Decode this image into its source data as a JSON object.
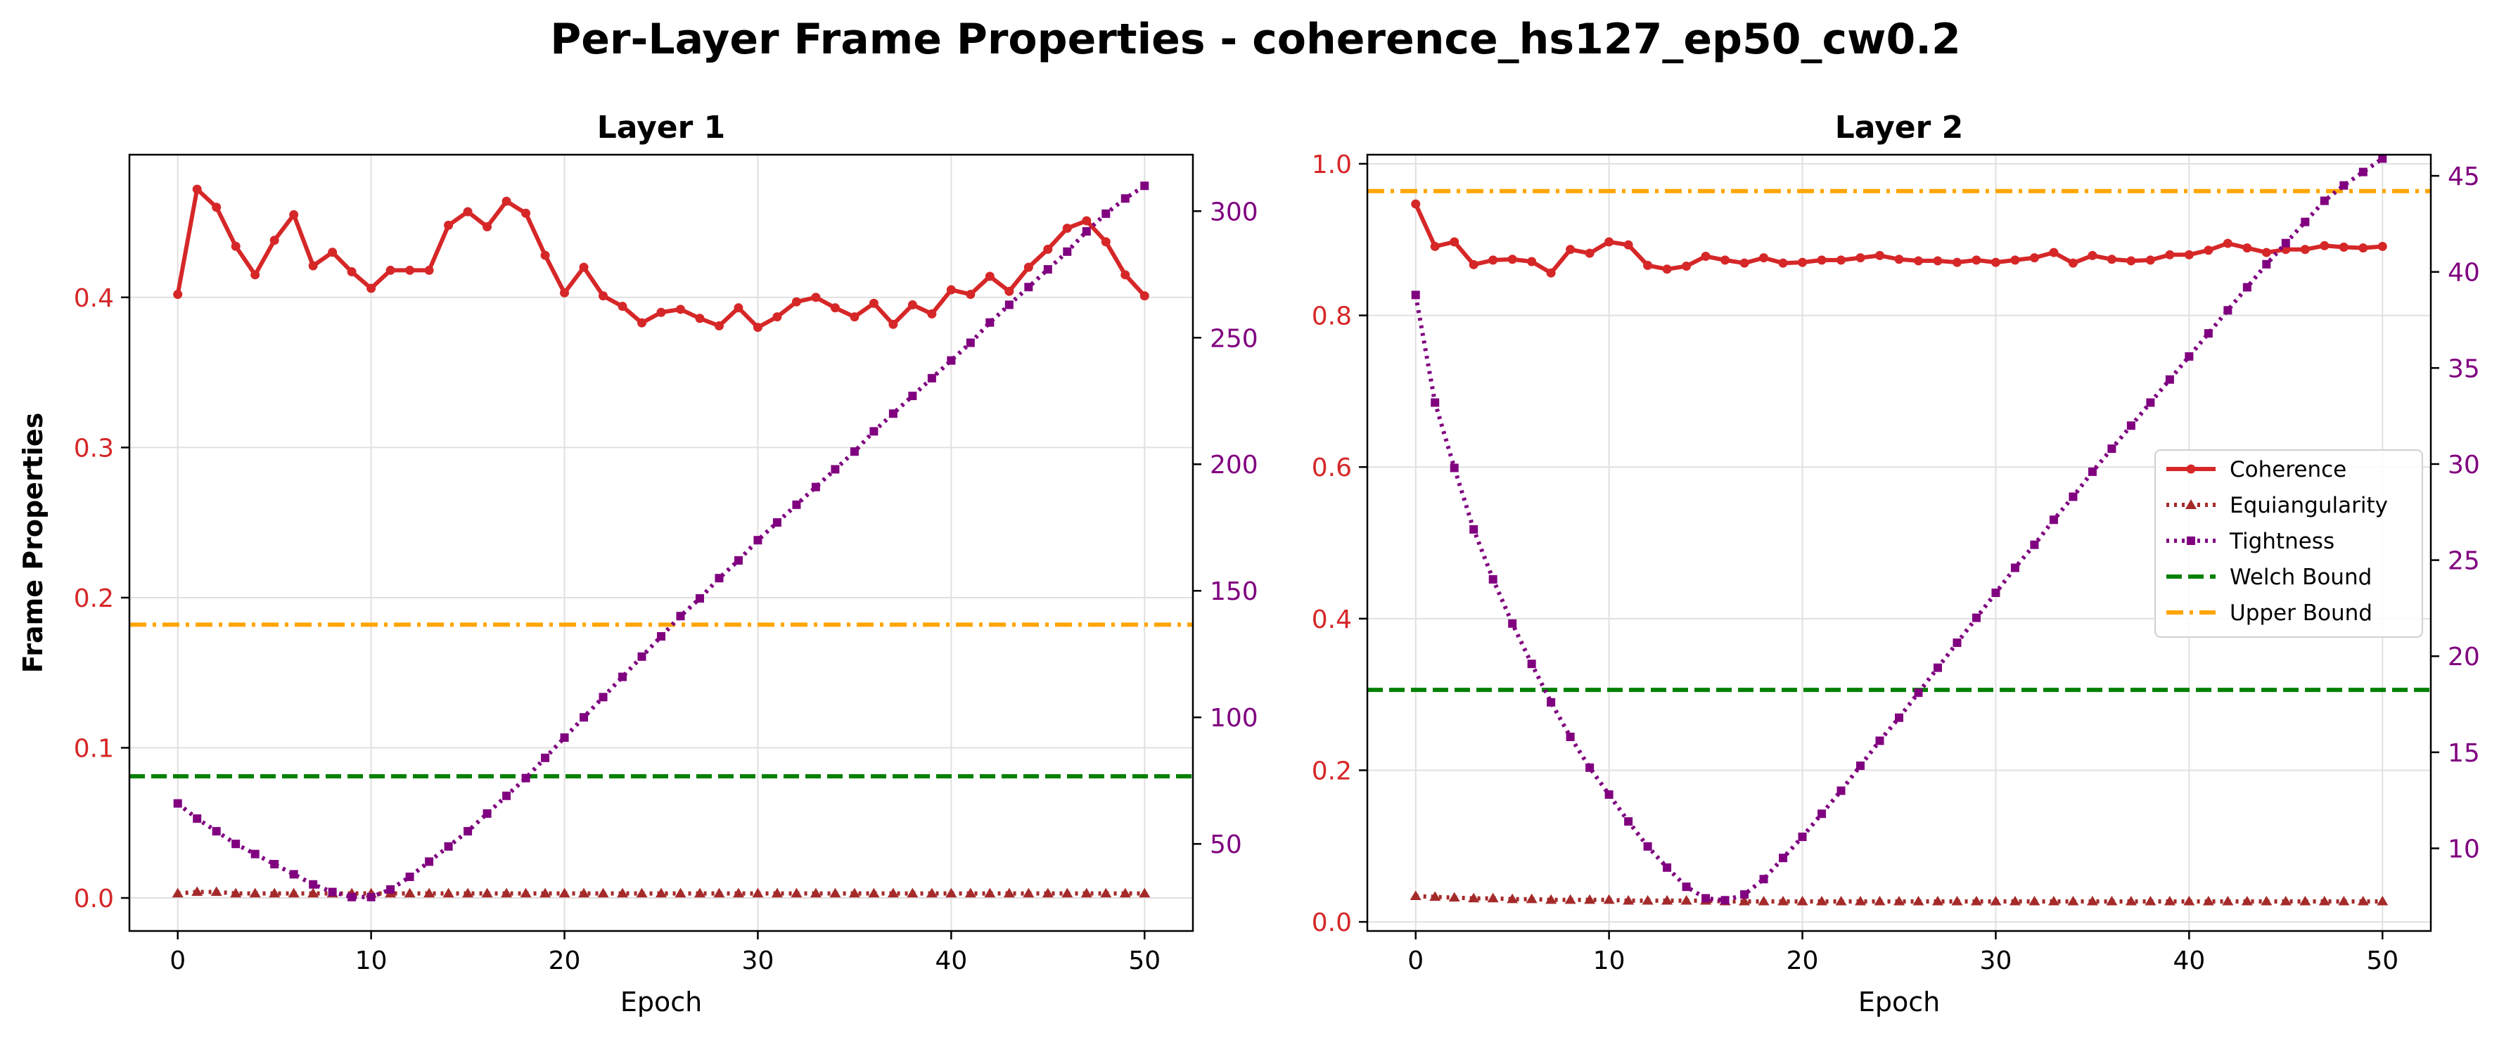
{
  "figure": {
    "title": "Per-Layer Frame Properties - coherence_hs127_ep50_cw0.2"
  },
  "chart_data": [
    {
      "type": "line",
      "title": "Layer 1",
      "xlabel": "Epoch",
      "ylabel": "Frame Properties",
      "y2label": "",
      "xlim": [
        -2.5,
        52.5
      ],
      "ylim": [
        -0.022,
        0.495
      ],
      "y2lim": [
        15.6,
        322.3
      ],
      "xticks": [
        0,
        10,
        20,
        30,
        40,
        50
      ],
      "yticks": [
        0.0,
        0.1,
        0.2,
        0.3,
        0.4
      ],
      "ytick_labels": [
        "0.0",
        "0.1",
        "0.2",
        "0.3",
        "0.4"
      ],
      "y2ticks": [
        50,
        100,
        150,
        200,
        250,
        300
      ],
      "grid": true,
      "legend": "none",
      "x": [
        0,
        1,
        2,
        3,
        4,
        5,
        6,
        7,
        8,
        9,
        10,
        11,
        12,
        13,
        14,
        15,
        16,
        17,
        18,
        19,
        20,
        21,
        22,
        23,
        24,
        25,
        26,
        27,
        28,
        29,
        30,
        31,
        32,
        33,
        34,
        35,
        36,
        37,
        38,
        39,
        40,
        41,
        42,
        43,
        44,
        45,
        46,
        47,
        48,
        49,
        50
      ],
      "series": [
        {
          "name": "Coherence",
          "axis": "left",
          "color": "#d62728",
          "style": "solid",
          "marker": "circle",
          "values": [
            0.402,
            0.472,
            0.46,
            0.434,
            0.415,
            0.438,
            0.455,
            0.421,
            0.43,
            0.417,
            0.406,
            0.418,
            0.418,
            0.418,
            0.448,
            0.457,
            0.447,
            0.464,
            0.456,
            0.428,
            0.403,
            0.42,
            0.401,
            0.394,
            0.383,
            0.39,
            0.392,
            0.386,
            0.381,
            0.393,
            0.38,
            0.387,
            0.397,
            0.4,
            0.393,
            0.387,
            0.396,
            0.382,
            0.395,
            0.389,
            0.405,
            0.402,
            0.414,
            0.404,
            0.42,
            0.432,
            0.446,
            0.451,
            0.437,
            0.415,
            0.401
          ]
        },
        {
          "name": "Equiangularity",
          "axis": "left",
          "color": "#a52a2a",
          "style": "dotted",
          "marker": "triangle",
          "values": [
            0.003,
            0.004,
            0.004,
            0.003,
            0.003,
            0.003,
            0.003,
            0.003,
            0.003,
            0.003,
            0.003,
            0.003,
            0.003,
            0.003,
            0.003,
            0.003,
            0.003,
            0.003,
            0.003,
            0.003,
            0.003,
            0.003,
            0.003,
            0.003,
            0.003,
            0.003,
            0.003,
            0.003,
            0.003,
            0.003,
            0.003,
            0.003,
            0.003,
            0.003,
            0.003,
            0.003,
            0.003,
            0.003,
            0.003,
            0.003,
            0.003,
            0.003,
            0.003,
            0.003,
            0.003,
            0.003,
            0.003,
            0.003,
            0.003,
            0.003,
            0.003
          ]
        },
        {
          "name": "Tightness",
          "axis": "right",
          "color": "#800080",
          "style": "dotted",
          "marker": "square",
          "values": [
            66,
            60,
            55,
            50,
            46,
            42,
            38,
            34,
            31,
            29,
            29,
            32,
            37,
            43,
            49,
            55,
            62,
            69,
            76,
            84,
            92,
            100,
            108,
            116,
            124,
            132,
            140,
            147,
            155,
            162,
            170,
            177,
            184,
            191,
            198,
            205,
            213,
            220,
            227,
            234,
            241,
            248,
            256,
            263,
            270,
            277,
            284,
            292,
            299,
            305,
            310
          ]
        },
        {
          "name": "Welch Bound",
          "axis": "left",
          "color": "#008000",
          "style": "dashed",
          "hline": 0.081
        },
        {
          "name": "Upper Bound",
          "axis": "left",
          "color": "#ffa500",
          "style": "dashdot",
          "hline": 0.182
        }
      ]
    },
    {
      "type": "line",
      "title": "Layer 2",
      "xlabel": "Epoch",
      "ylabel": "",
      "y2label": "",
      "xlim": [
        -2.5,
        52.5
      ],
      "ylim": [
        -0.012,
        1.012
      ],
      "y2lim": [
        5.7,
        46.1
      ],
      "xticks": [
        0,
        10,
        20,
        30,
        40,
        50
      ],
      "yticks": [
        0.0,
        0.2,
        0.4,
        0.6,
        0.8,
        1.0
      ],
      "ytick_labels": [
        "0.0",
        "0.2",
        "0.4",
        "0.6",
        "0.8",
        "1.0"
      ],
      "y2ticks": [
        10,
        15,
        20,
        25,
        30,
        35,
        40,
        45
      ],
      "grid": true,
      "legend": "center-right",
      "x": [
        0,
        1,
        2,
        3,
        4,
        5,
        6,
        7,
        8,
        9,
        10,
        11,
        12,
        13,
        14,
        15,
        16,
        17,
        18,
        19,
        20,
        21,
        22,
        23,
        24,
        25,
        26,
        27,
        28,
        29,
        30,
        31,
        32,
        33,
        34,
        35,
        36,
        37,
        38,
        39,
        40,
        41,
        42,
        43,
        44,
        45,
        46,
        47,
        48,
        49,
        50
      ],
      "series": [
        {
          "name": "Coherence",
          "axis": "left",
          "color": "#d62728",
          "style": "solid",
          "marker": "circle",
          "values": [
            0.947,
            0.891,
            0.897,
            0.867,
            0.873,
            0.874,
            0.871,
            0.856,
            0.887,
            0.882,
            0.897,
            0.893,
            0.866,
            0.861,
            0.865,
            0.878,
            0.873,
            0.869,
            0.876,
            0.869,
            0.87,
            0.873,
            0.873,
            0.876,
            0.879,
            0.874,
            0.872,
            0.872,
            0.87,
            0.873,
            0.87,
            0.873,
            0.876,
            0.883,
            0.869,
            0.879,
            0.874,
            0.872,
            0.873,
            0.88,
            0.88,
            0.886,
            0.895,
            0.889,
            0.883,
            0.887,
            0.887,
            0.892,
            0.89,
            0.889,
            0.891
          ]
        },
        {
          "name": "Equiangularity",
          "axis": "left",
          "color": "#a52a2a",
          "style": "dotted",
          "marker": "triangle",
          "values": [
            0.034,
            0.033,
            0.032,
            0.031,
            0.031,
            0.03,
            0.03,
            0.029,
            0.029,
            0.029,
            0.029,
            0.028,
            0.028,
            0.028,
            0.028,
            0.028,
            0.027,
            0.027,
            0.027,
            0.027,
            0.027,
            0.027,
            0.027,
            0.027,
            0.027,
            0.027,
            0.027,
            0.027,
            0.027,
            0.027,
            0.027,
            0.027,
            0.027,
            0.027,
            0.027,
            0.027,
            0.027,
            0.027,
            0.027,
            0.027,
            0.027,
            0.027,
            0.027,
            0.027,
            0.027,
            0.027,
            0.027,
            0.027,
            0.027,
            0.027,
            0.027
          ]
        },
        {
          "name": "Tightness",
          "axis": "right",
          "color": "#800080",
          "style": "dotted",
          "marker": "square",
          "values": [
            38.8,
            33.2,
            29.8,
            26.6,
            24.0,
            21.7,
            19.6,
            17.6,
            15.8,
            14.2,
            12.8,
            11.4,
            10.1,
            9.0,
            8.0,
            7.4,
            7.3,
            7.6,
            8.4,
            9.5,
            10.6,
            11.8,
            13.0,
            14.3,
            15.6,
            16.8,
            18.1,
            19.4,
            20.7,
            22.0,
            23.3,
            24.6,
            25.8,
            27.1,
            28.3,
            29.6,
            30.8,
            32.0,
            33.2,
            34.4,
            35.6,
            36.8,
            38.0,
            39.2,
            40.4,
            41.5,
            42.6,
            43.7,
            44.5,
            45.2,
            45.9
          ]
        },
        {
          "name": "Welch Bound",
          "axis": "left",
          "color": "#008000",
          "style": "dashed",
          "hline": 0.306
        },
        {
          "name": "Upper Bound",
          "axis": "left",
          "color": "#ffa500",
          "style": "dashdot",
          "hline": 0.964
        }
      ]
    }
  ]
}
